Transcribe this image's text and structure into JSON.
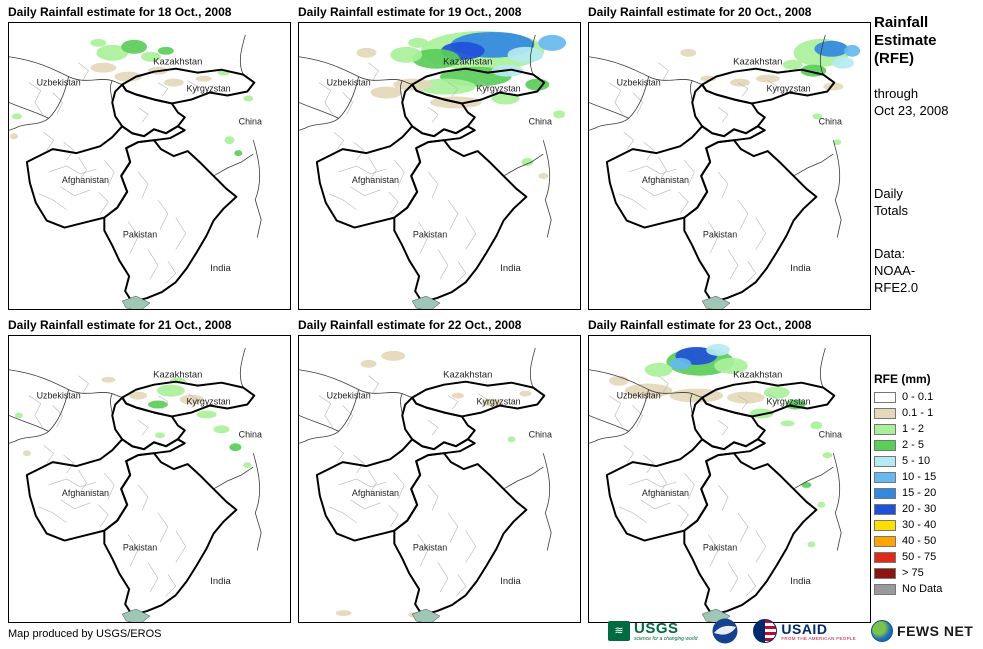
{
  "panels": [
    {
      "title": "Daily Rainfall estimate for 18 Oct., 2008",
      "rainfall": [
        [
          104,
          30,
          16,
          8,
          "g1"
        ],
        [
          126,
          24,
          13,
          7,
          "g2"
        ],
        [
          143,
          34,
          10,
          5,
          "g1"
        ],
        [
          95,
          45,
          13,
          5,
          "t"
        ],
        [
          158,
          28,
          8,
          4,
          "g2"
        ],
        [
          120,
          54,
          14,
          5,
          "t"
        ],
        [
          150,
          48,
          10,
          4,
          "t"
        ],
        [
          166,
          60,
          10,
          4,
          "t"
        ],
        [
          196,
          56,
          8,
          3,
          "t"
        ],
        [
          216,
          50,
          6,
          3,
          "g1"
        ],
        [
          222,
          118,
          5,
          4,
          "g1"
        ],
        [
          231,
          131,
          4,
          3,
          "g2"
        ],
        [
          8,
          94,
          5,
          3,
          "g1"
        ],
        [
          5,
          114,
          4,
          3,
          "t"
        ],
        [
          241,
          76,
          5,
          3,
          "g1"
        ],
        [
          90,
          20,
          8,
          4,
          "g1"
        ]
      ]
    },
    {
      "title": "Daily Rainfall estimate for 19 Oct., 2008",
      "rainfall": [
        [
          185,
          28,
          62,
          20,
          "g1"
        ],
        [
          195,
          22,
          42,
          13,
          "b2"
        ],
        [
          165,
          28,
          22,
          9,
          "b3"
        ],
        [
          228,
          32,
          18,
          8,
          "cy"
        ],
        [
          255,
          20,
          14,
          8,
          "b1"
        ],
        [
          138,
          36,
          24,
          10,
          "g2"
        ],
        [
          108,
          32,
          16,
          8,
          "g1"
        ],
        [
          178,
          54,
          36,
          10,
          "g2"
        ],
        [
          148,
          64,
          30,
          8,
          "g1"
        ],
        [
          115,
          62,
          20,
          6,
          "t"
        ],
        [
          88,
          70,
          16,
          6,
          "t"
        ],
        [
          158,
          80,
          26,
          6,
          "t"
        ],
        [
          208,
          76,
          14,
          6,
          "g1"
        ],
        [
          240,
          62,
          12,
          6,
          "g2"
        ],
        [
          230,
          140,
          6,
          4,
          "g1"
        ],
        [
          246,
          154,
          5,
          3,
          "t"
        ],
        [
          68,
          30,
          10,
          5,
          "t"
        ],
        [
          262,
          92,
          6,
          4,
          "g1"
        ],
        [
          210,
          48,
          16,
          6,
          "cy"
        ],
        [
          120,
          20,
          10,
          5,
          "g1"
        ]
      ]
    },
    {
      "title": "Daily Rainfall estimate for 20 Oct., 2008",
      "rainfall": [
        [
          234,
          30,
          28,
          14,
          "g1"
        ],
        [
          244,
          26,
          17,
          8,
          "b2"
        ],
        [
          256,
          40,
          11,
          6,
          "cy"
        ],
        [
          226,
          48,
          13,
          6,
          "g2"
        ],
        [
          205,
          42,
          10,
          5,
          "g1"
        ],
        [
          180,
          56,
          12,
          4,
          "t"
        ],
        [
          152,
          60,
          10,
          4,
          "t"
        ],
        [
          246,
          64,
          10,
          4,
          "t"
        ],
        [
          230,
          94,
          5,
          3,
          "g1"
        ],
        [
          250,
          120,
          4,
          3,
          "g1"
        ],
        [
          100,
          30,
          8,
          4,
          "t"
        ],
        [
          265,
          28,
          8,
          6,
          "b1"
        ],
        [
          120,
          56,
          8,
          3,
          "t"
        ]
      ]
    },
    {
      "title": "Daily Rainfall estimate for 21 Oct., 2008",
      "rainfall": [
        [
          163,
          55,
          14,
          6,
          "g1"
        ],
        [
          184,
          64,
          12,
          5,
          "t"
        ],
        [
          150,
          69,
          10,
          4,
          "g2"
        ],
        [
          199,
          79,
          10,
          4,
          "g1"
        ],
        [
          214,
          94,
          8,
          4,
          "g1"
        ],
        [
          228,
          112,
          6,
          4,
          "g2"
        ],
        [
          130,
          60,
          9,
          4,
          "t"
        ],
        [
          10,
          80,
          4,
          3,
          "g1"
        ],
        [
          18,
          118,
          4,
          3,
          "t"
        ],
        [
          240,
          130,
          4,
          3,
          "g1"
        ],
        [
          100,
          44,
          7,
          3,
          "t"
        ],
        [
          152,
          100,
          5,
          3,
          "g1"
        ],
        [
          170,
          45,
          8,
          3,
          "g1"
        ]
      ]
    },
    {
      "title": "Daily Rainfall estimate for 22 Oct., 2008",
      "rainfall": [
        [
          95,
          20,
          12,
          5,
          "t"
        ],
        [
          70,
          28,
          8,
          4,
          "t"
        ],
        [
          194,
          67,
          10,
          4,
          "t"
        ],
        [
          214,
          104,
          4,
          3,
          "g1"
        ],
        [
          120,
          281,
          10,
          3,
          "t"
        ],
        [
          45,
          279,
          8,
          3,
          "t"
        ],
        [
          228,
          58,
          6,
          3,
          "t"
        ],
        [
          160,
          60,
          6,
          3,
          "t"
        ]
      ]
    },
    {
      "title": "Daily Rainfall estimate for 23 Oct., 2008",
      "rainfall": [
        [
          112,
          26,
          34,
          14,
          "g2"
        ],
        [
          108,
          20,
          21,
          9,
          "b3"
        ],
        [
          92,
          28,
          11,
          6,
          "b1"
        ],
        [
          143,
          30,
          17,
          8,
          "g1"
        ],
        [
          70,
          34,
          14,
          7,
          "g1"
        ],
        [
          60,
          55,
          24,
          7,
          "t"
        ],
        [
          108,
          60,
          27,
          7,
          "t"
        ],
        [
          158,
          62,
          19,
          6,
          "t"
        ],
        [
          189,
          57,
          13,
          6,
          "g1"
        ],
        [
          208,
          69,
          10,
          5,
          "g2"
        ],
        [
          174,
          78,
          12,
          5,
          "g1"
        ],
        [
          229,
          90,
          6,
          4,
          "g1"
        ],
        [
          240,
          120,
          5,
          3,
          "g1"
        ],
        [
          219,
          150,
          5,
          3,
          "g2"
        ],
        [
          234,
          170,
          4,
          3,
          "g1"
        ],
        [
          30,
          45,
          10,
          5,
          "t"
        ],
        [
          224,
          210,
          4,
          3,
          "g1"
        ],
        [
          130,
          14,
          12,
          6,
          "cy"
        ],
        [
          200,
          88,
          7,
          3,
          "g1"
        ]
      ]
    }
  ],
  "map_labels": {
    "kazakhstan": "Kazakhstan",
    "uzbekistan": "Uzbekistan",
    "kyrgyzstan": "Kyrgyzstan",
    "china": "China",
    "afghanistan": "Afghanistan",
    "pakistan": "Pakistan",
    "india": "India"
  },
  "rain_colors": {
    "t": "#E4D7BA",
    "g1": "#AAF09A",
    "g2": "#5ACD5A",
    "cy": "#B6EAF2",
    "b1": "#66B8EE",
    "b2": "#3388E0",
    "b3": "#1F50D8"
  },
  "sidebar": {
    "title_line1": "Rainfall",
    "title_line2": "Estimate",
    "title_line3": "(RFE)",
    "subtitle_line1": "through",
    "subtitle_line2": "Oct 23, 2008",
    "totals_line1": "Daily",
    "totals_line2": "Totals",
    "data_line1": "Data:",
    "data_line2": "NOAA-",
    "data_line3": "RFE2.0",
    "legend_title": "RFE (mm)",
    "legend": [
      {
        "label": "0 - 0.1",
        "color": "#FFFFFF"
      },
      {
        "label": "0.1 - 1",
        "color": "#E4D7BA"
      },
      {
        "label": "1 - 2",
        "color": "#AAF09A"
      },
      {
        "label": "2 - 5",
        "color": "#5ACD5A"
      },
      {
        "label": "5 - 10",
        "color": "#B6EAF2"
      },
      {
        "label": "10 - 15",
        "color": "#66B8EE"
      },
      {
        "label": "15 - 20",
        "color": "#3388E0"
      },
      {
        "label": "20 - 30",
        "color": "#1F50D8"
      },
      {
        "label": "30 - 40",
        "color": "#FFDF00"
      },
      {
        "label": "40 - 50",
        "color": "#FFA400"
      },
      {
        "label": "50 - 75",
        "color": "#DE2A1A"
      },
      {
        "label": "> 75",
        "color": "#8C1510"
      },
      {
        "label": "No Data",
        "color": "#9A9A9A"
      }
    ]
  },
  "footer": {
    "credit": "Map produced by USGS/EROS",
    "logos": {
      "usgs": {
        "text": "USGS",
        "tagline": "science for a changing world"
      },
      "usaid": {
        "text": "USAID",
        "tagline": "FROM THE AMERICAN PEOPLE"
      },
      "fewsnet": {
        "text": "FEWS NET"
      }
    }
  }
}
